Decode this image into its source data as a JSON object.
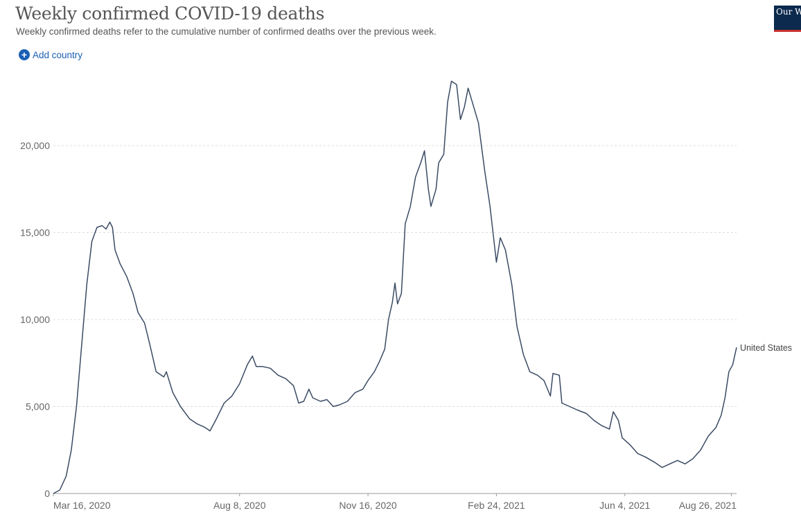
{
  "header": {
    "title": "Weekly confirmed COVID-19 deaths",
    "subtitle": "Weekly confirmed deaths refer to the cumulative number of confirmed deaths over the previous week.",
    "add_country_label": "Add country",
    "logo_text": "Our World in Data"
  },
  "colors": {
    "line": "#3a4a63",
    "link": "#1a5fb4",
    "grid": "#dddddd"
  },
  "chart_data": {
    "type": "line",
    "title": "Weekly confirmed COVID-19 deaths",
    "xlabel": "",
    "ylabel": "",
    "ylim": [
      0,
      24000
    ],
    "y_ticks": [
      0,
      5000,
      10000,
      15000,
      20000
    ],
    "y_tick_labels": [
      "0",
      "5,000",
      "10,000",
      "15,000",
      "20,000"
    ],
    "grid": true,
    "x_ticks": [
      {
        "date": "2020-03-16",
        "label": "Mar 16, 2020"
      },
      {
        "date": "2020-08-08",
        "label": "Aug 8, 2020"
      },
      {
        "date": "2020-11-16",
        "label": "Nov 16, 2020"
      },
      {
        "date": "2021-02-24",
        "label": "Feb 24, 2021"
      },
      {
        "date": "2021-06-04",
        "label": "Jun 4, 2021"
      },
      {
        "date": "2021-08-26",
        "label": "Aug 26, 2021"
      }
    ],
    "series": [
      {
        "name": "United States",
        "points": [
          [
            "2020-03-16",
            0
          ],
          [
            "2020-03-21",
            200
          ],
          [
            "2020-03-26",
            1000
          ],
          [
            "2020-03-30",
            2500
          ],
          [
            "2020-04-03",
            5000
          ],
          [
            "2020-04-07",
            8500
          ],
          [
            "2020-04-11",
            12000
          ],
          [
            "2020-04-15",
            14500
          ],
          [
            "2020-04-19",
            15300
          ],
          [
            "2020-04-23",
            15400
          ],
          [
            "2020-04-26",
            15200
          ],
          [
            "2020-04-29",
            15600
          ],
          [
            "2020-05-01",
            15300
          ],
          [
            "2020-05-03",
            14000
          ],
          [
            "2020-05-07",
            13200
          ],
          [
            "2020-05-12",
            12500
          ],
          [
            "2020-05-17",
            11500
          ],
          [
            "2020-05-21",
            10400
          ],
          [
            "2020-05-26",
            9800
          ],
          [
            "2020-05-30",
            8600
          ],
          [
            "2020-06-04",
            7000
          ],
          [
            "2020-06-10",
            6700
          ],
          [
            "2020-06-12",
            7000
          ],
          [
            "2020-06-17",
            5800
          ],
          [
            "2020-06-23",
            5000
          ],
          [
            "2020-06-30",
            4300
          ],
          [
            "2020-07-06",
            4000
          ],
          [
            "2020-07-12",
            3800
          ],
          [
            "2020-07-16",
            3600
          ],
          [
            "2020-07-21",
            4300
          ],
          [
            "2020-07-27",
            5200
          ],
          [
            "2020-08-02",
            5600
          ],
          [
            "2020-08-08",
            6300
          ],
          [
            "2020-08-14",
            7400
          ],
          [
            "2020-08-18",
            7900
          ],
          [
            "2020-08-21",
            7300
          ],
          [
            "2020-08-26",
            7300
          ],
          [
            "2020-09-01",
            7200
          ],
          [
            "2020-09-07",
            6800
          ],
          [
            "2020-09-13",
            6600
          ],
          [
            "2020-09-19",
            6200
          ],
          [
            "2020-09-23",
            5200
          ],
          [
            "2020-09-27",
            5300
          ],
          [
            "2020-10-01",
            6000
          ],
          [
            "2020-10-04",
            5500
          ],
          [
            "2020-10-10",
            5300
          ],
          [
            "2020-10-15",
            5400
          ],
          [
            "2020-10-20",
            5000
          ],
          [
            "2020-10-25",
            5100
          ],
          [
            "2020-10-31",
            5300
          ],
          [
            "2020-11-06",
            5800
          ],
          [
            "2020-11-12",
            6000
          ],
          [
            "2020-11-16",
            6500
          ],
          [
            "2020-11-21",
            7000
          ],
          [
            "2020-11-25",
            7600
          ],
          [
            "2020-11-29",
            8300
          ],
          [
            "2020-12-02",
            10000
          ],
          [
            "2020-12-05",
            11000
          ],
          [
            "2020-12-07",
            12100
          ],
          [
            "2020-12-09",
            10900
          ],
          [
            "2020-12-12",
            11500
          ],
          [
            "2020-12-15",
            15500
          ],
          [
            "2020-12-19",
            16500
          ],
          [
            "2020-12-23",
            18200
          ],
          [
            "2020-12-27",
            19000
          ],
          [
            "2020-12-30",
            19700
          ],
          [
            "2021-01-02",
            17500
          ],
          [
            "2021-01-04",
            16500
          ],
          [
            "2021-01-08",
            17500
          ],
          [
            "2021-01-10",
            19000
          ],
          [
            "2021-01-14",
            19500
          ],
          [
            "2021-01-17",
            22500
          ],
          [
            "2021-01-20",
            23700
          ],
          [
            "2021-01-24",
            23500
          ],
          [
            "2021-01-27",
            21500
          ],
          [
            "2021-01-30",
            22200
          ],
          [
            "2021-02-02",
            23300
          ],
          [
            "2021-02-06",
            22300
          ],
          [
            "2021-02-10",
            21300
          ],
          [
            "2021-02-15",
            18500
          ],
          [
            "2021-02-19",
            16500
          ],
          [
            "2021-02-24",
            13300
          ],
          [
            "2021-02-27",
            14700
          ],
          [
            "2021-03-03",
            14000
          ],
          [
            "2021-03-08",
            12000
          ],
          [
            "2021-03-12",
            9600
          ],
          [
            "2021-03-17",
            8000
          ],
          [
            "2021-03-22",
            7000
          ],
          [
            "2021-03-28",
            6800
          ],
          [
            "2021-04-02",
            6500
          ],
          [
            "2021-04-07",
            5600
          ],
          [
            "2021-04-09",
            6900
          ],
          [
            "2021-04-14",
            6800
          ],
          [
            "2021-04-16",
            5200
          ],
          [
            "2021-04-22",
            5000
          ],
          [
            "2021-04-28",
            4800
          ],
          [
            "2021-05-05",
            4600
          ],
          [
            "2021-05-11",
            4200
          ],
          [
            "2021-05-17",
            3900
          ],
          [
            "2021-05-23",
            3700
          ],
          [
            "2021-05-26",
            4700
          ],
          [
            "2021-05-30",
            4200
          ],
          [
            "2021-06-02",
            3200
          ],
          [
            "2021-06-08",
            2800
          ],
          [
            "2021-06-14",
            2300
          ],
          [
            "2021-06-20",
            2100
          ],
          [
            "2021-06-27",
            1800
          ],
          [
            "2021-07-03",
            1500
          ],
          [
            "2021-07-09",
            1700
          ],
          [
            "2021-07-15",
            1900
          ],
          [
            "2021-07-21",
            1700
          ],
          [
            "2021-07-27",
            2000
          ],
          [
            "2021-08-02",
            2500
          ],
          [
            "2021-08-08",
            3300
          ],
          [
            "2021-08-14",
            3800
          ],
          [
            "2021-08-18",
            4500
          ],
          [
            "2021-08-21",
            5500
          ],
          [
            "2021-08-24",
            7000
          ],
          [
            "2021-08-27",
            7400
          ],
          [
            "2021-08-30",
            8400
          ]
        ]
      }
    ]
  }
}
